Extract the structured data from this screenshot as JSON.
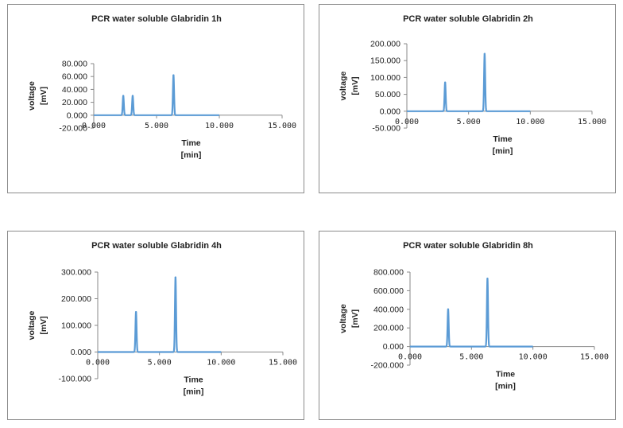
{
  "chart_data": [
    {
      "type": "line",
      "title": "PCR water soluble Glabridin 1h",
      "xlabel": "Time",
      "xunit": "[min]",
      "ylabel": "voltage",
      "yunit": "[mV]",
      "xlim": [
        0,
        15
      ],
      "ylim": [
        -20,
        80
      ],
      "xticks": [
        "0.000",
        "5.000",
        "10.000",
        "15.000"
      ],
      "yticks": [
        "-20.000",
        "0.000",
        "20.000",
        "40.000",
        "60.000",
        "80.000"
      ],
      "color": "#5b9bd5",
      "peaks": [
        {
          "rt": 2.35,
          "height": 30
        },
        {
          "rt": 3.1,
          "height": 30
        },
        {
          "rt": 6.35,
          "height": 62
        }
      ],
      "trace_end": 10.0
    },
    {
      "type": "line",
      "title": "PCR water soluble Glabridin 2h",
      "xlabel": "Time",
      "xunit": "[min]",
      "ylabel": "voltage",
      "yunit": "[mV]",
      "xlim": [
        0,
        15
      ],
      "ylim": [
        -50,
        200
      ],
      "xticks": [
        "0.000",
        "5.000",
        "10.000",
        "15.000"
      ],
      "yticks": [
        "-50.000",
        "0.000",
        "50.000",
        "100.000",
        "150.000",
        "200.000"
      ],
      "color": "#5b9bd5",
      "peaks": [
        {
          "rt": 3.1,
          "height": 85
        },
        {
          "rt": 6.3,
          "height": 170
        }
      ],
      "trace_end": 10.0
    },
    {
      "type": "line",
      "title": "PCR water soluble Glabridin 4h",
      "xlabel": "Time",
      "xunit": "[min]",
      "ylabel": "voltage",
      "yunit": "[mV]",
      "xlim": [
        0,
        15
      ],
      "ylim": [
        -100,
        300
      ],
      "xticks": [
        "0.000",
        "5.000",
        "10.000",
        "15.000"
      ],
      "yticks": [
        "-100.000",
        "0.000",
        "100.000",
        "200.000",
        "300.000"
      ],
      "color": "#5b9bd5",
      "peaks": [
        {
          "rt": 3.1,
          "height": 150
        },
        {
          "rt": 6.3,
          "height": 280
        }
      ],
      "trace_end": 10.0
    },
    {
      "type": "line",
      "title": "PCR water soluble Glabridin 8h",
      "xlabel": "Time",
      "xunit": "[min]",
      "ylabel": "voltage",
      "yunit": "[mV]",
      "xlim": [
        0,
        15
      ],
      "ylim": [
        -200,
        800
      ],
      "xticks": [
        "0.000",
        "5.000",
        "10.000",
        "15.000"
      ],
      "yticks": [
        "-200.000",
        "0.000",
        "200.000",
        "400.000",
        "600.000",
        "800.000"
      ],
      "color": "#5b9bd5",
      "peaks": [
        {
          "rt": 3.1,
          "height": 400
        },
        {
          "rt": 6.3,
          "height": 730
        }
      ],
      "trace_end": 10.0
    }
  ]
}
